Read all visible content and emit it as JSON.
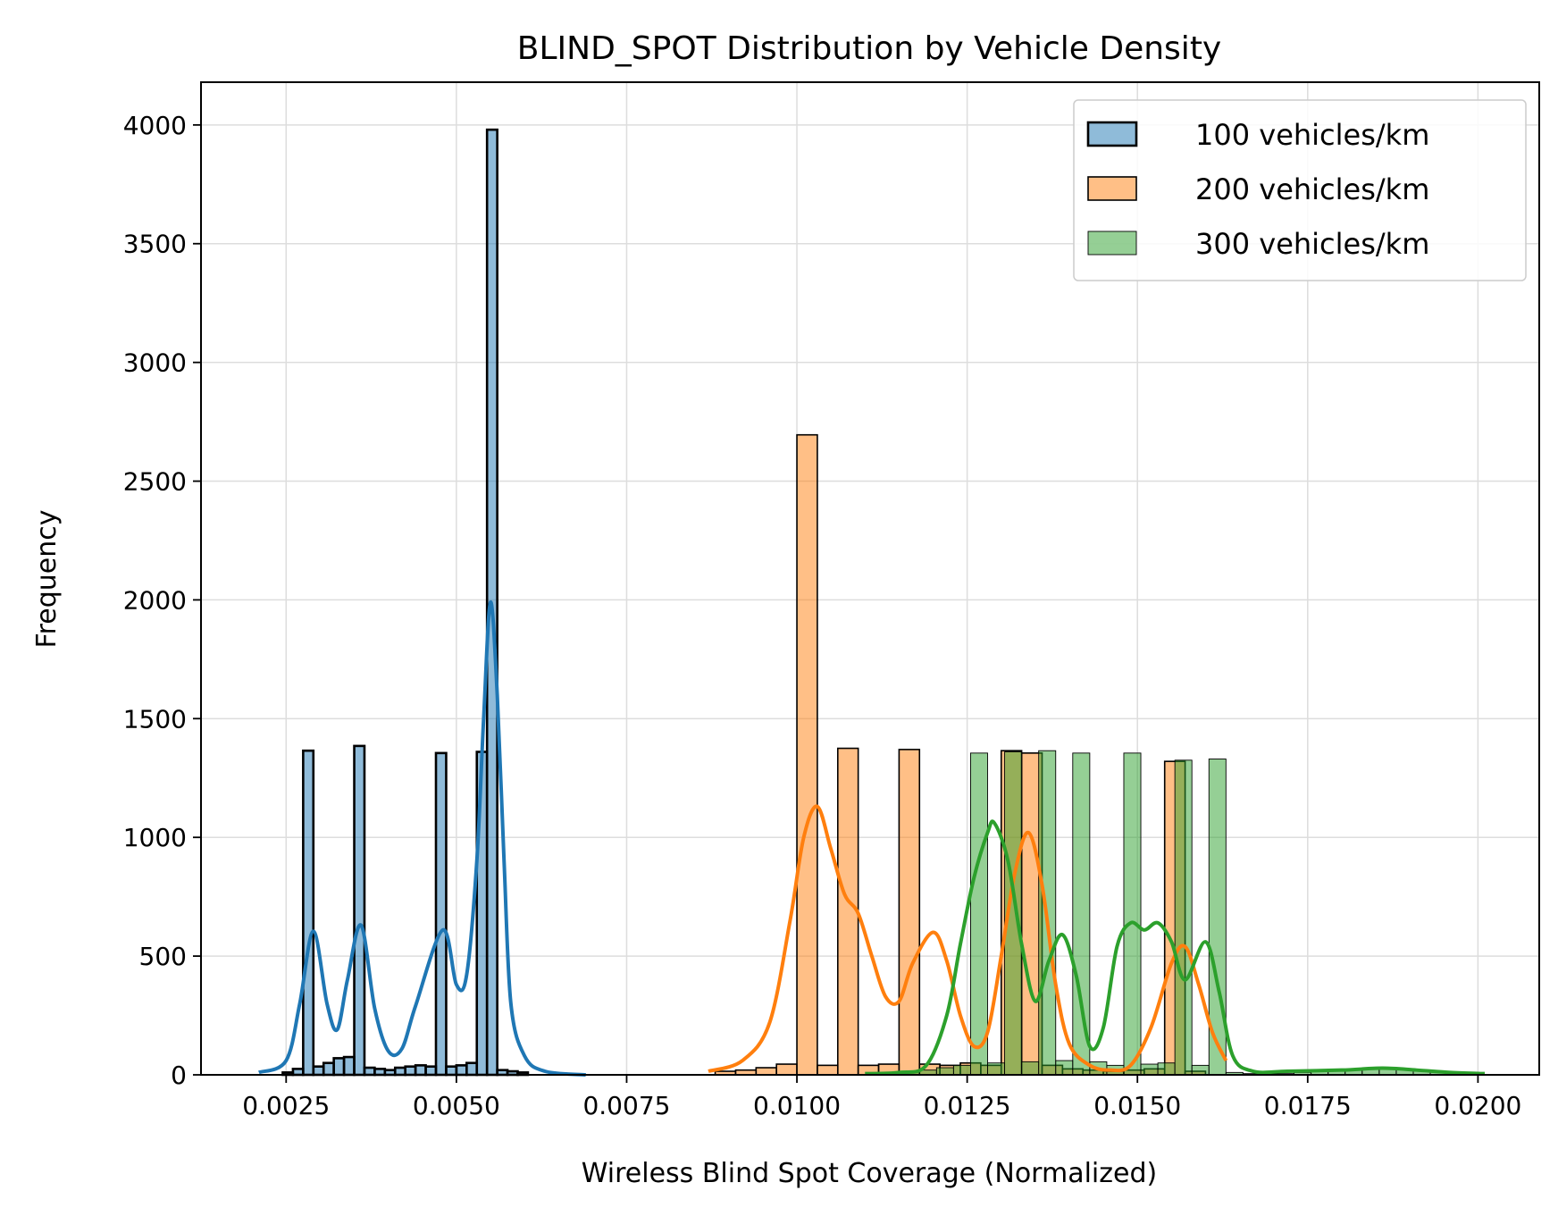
{
  "chart_data": {
    "type": "histogram",
    "title": "BLIND_SPOT Distribution by Vehicle Density",
    "xlabel": "Wireless Blind Spot Coverage (Normalized)",
    "ylabel": "Frequency",
    "xlim": [
      0.00125,
      0.0209
    ],
    "ylim": [
      0,
      4180
    ],
    "x_ticks": [
      0.0025,
      0.005,
      0.0075,
      0.01,
      0.0125,
      0.015,
      0.0175,
      0.02
    ],
    "x_tick_labels": [
      "0.0025",
      "0.0050",
      "0.0075",
      "0.0100",
      "0.0125",
      "0.0150",
      "0.0175",
      "0.0200"
    ],
    "y_ticks": [
      0,
      500,
      1000,
      1500,
      2000,
      2500,
      3000,
      3500,
      4000
    ],
    "y_tick_labels": [
      "0",
      "500",
      "1000",
      "1500",
      "2000",
      "2500",
      "3000",
      "3500",
      "4000"
    ],
    "grid": true,
    "legend_position": "top-right",
    "series": [
      {
        "name": "100 vehicles/km",
        "color": "#1f77b4",
        "bin_width": 0.00015,
        "bins": [
          {
            "x": 0.00245,
            "y": 10
          },
          {
            "x": 0.0026,
            "y": 25
          },
          {
            "x": 0.00275,
            "y": 1365
          },
          {
            "x": 0.0029,
            "y": 35
          },
          {
            "x": 0.00305,
            "y": 50
          },
          {
            "x": 0.0032,
            "y": 70
          },
          {
            "x": 0.00335,
            "y": 75
          },
          {
            "x": 0.0035,
            "y": 1385
          },
          {
            "x": 0.00365,
            "y": 30
          },
          {
            "x": 0.0038,
            "y": 25
          },
          {
            "x": 0.00395,
            "y": 20
          },
          {
            "x": 0.0041,
            "y": 30
          },
          {
            "x": 0.00425,
            "y": 35
          },
          {
            "x": 0.0044,
            "y": 40
          },
          {
            "x": 0.00455,
            "y": 35
          },
          {
            "x": 0.0047,
            "y": 1355
          },
          {
            "x": 0.00485,
            "y": 35
          },
          {
            "x": 0.005,
            "y": 40
          },
          {
            "x": 0.00515,
            "y": 50
          },
          {
            "x": 0.0053,
            "y": 1360
          },
          {
            "x": 0.00545,
            "y": 3980
          },
          {
            "x": 0.0056,
            "y": 20
          },
          {
            "x": 0.00575,
            "y": 15
          },
          {
            "x": 0.0059,
            "y": 10
          }
        ],
        "kde": [
          [
            0.0021,
            10
          ],
          [
            0.0025,
            60
          ],
          [
            0.0027,
            300
          ],
          [
            0.0029,
            605
          ],
          [
            0.0031,
            300
          ],
          [
            0.00325,
            190
          ],
          [
            0.0034,
            400
          ],
          [
            0.0036,
            630
          ],
          [
            0.0038,
            280
          ],
          [
            0.004,
            100
          ],
          [
            0.0042,
            110
          ],
          [
            0.0044,
            290
          ],
          [
            0.0048,
            610
          ],
          [
            0.005,
            380
          ],
          [
            0.00515,
            420
          ],
          [
            0.0053,
            900
          ],
          [
            0.0054,
            1500
          ],
          [
            0.0055,
            1990
          ],
          [
            0.0056,
            1600
          ],
          [
            0.0057,
            900
          ],
          [
            0.0058,
            300
          ],
          [
            0.006,
            80
          ],
          [
            0.0063,
            15
          ],
          [
            0.0069,
            0
          ]
        ]
      },
      {
        "name": "200 vehicles/km",
        "color": "#ff7f0e",
        "bin_width": 0.0003,
        "bins": [
          {
            "x": 0.0088,
            "y": 15
          },
          {
            "x": 0.0091,
            "y": 20
          },
          {
            "x": 0.0094,
            "y": 30
          },
          {
            "x": 0.0097,
            "y": 45
          },
          {
            "x": 0.01,
            "y": 2695
          },
          {
            "x": 0.0103,
            "y": 40
          },
          {
            "x": 0.0106,
            "y": 1375
          },
          {
            "x": 0.0109,
            "y": 40
          },
          {
            "x": 0.0112,
            "y": 45
          },
          {
            "x": 0.0115,
            "y": 1370
          },
          {
            "x": 0.0118,
            "y": 45
          },
          {
            "x": 0.0121,
            "y": 40
          },
          {
            "x": 0.0124,
            "y": 50
          },
          {
            "x": 0.0127,
            "y": 40
          },
          {
            "x": 0.013,
            "y": 1365
          },
          {
            "x": 0.0133,
            "y": 1355
          },
          {
            "x": 0.0136,
            "y": 40
          },
          {
            "x": 0.0139,
            "y": 25
          },
          {
            "x": 0.0142,
            "y": 20
          },
          {
            "x": 0.0145,
            "y": 15
          },
          {
            "x": 0.0148,
            "y": 20
          },
          {
            "x": 0.0151,
            "y": 25
          },
          {
            "x": 0.0154,
            "y": 1320
          },
          {
            "x": 0.0157,
            "y": 15
          }
        ],
        "kde": [
          [
            0.0087,
            15
          ],
          [
            0.0092,
            60
          ],
          [
            0.0096,
            220
          ],
          [
            0.0099,
            650
          ],
          [
            0.0101,
            1000
          ],
          [
            0.0103,
            1130
          ],
          [
            0.0105,
            950
          ],
          [
            0.0107,
            760
          ],
          [
            0.0109,
            680
          ],
          [
            0.0111,
            500
          ],
          [
            0.0113,
            330
          ],
          [
            0.0115,
            310
          ],
          [
            0.0117,
            470
          ],
          [
            0.012,
            600
          ],
          [
            0.0122,
            480
          ],
          [
            0.0124,
            250
          ],
          [
            0.0126,
            120
          ],
          [
            0.0128,
            180
          ],
          [
            0.013,
            500
          ],
          [
            0.0132,
            850
          ],
          [
            0.0134,
            1020
          ],
          [
            0.0136,
            800
          ],
          [
            0.0138,
            380
          ],
          [
            0.014,
            130
          ],
          [
            0.0143,
            40
          ],
          [
            0.0146,
            20
          ],
          [
            0.0149,
            40
          ],
          [
            0.0152,
            200
          ],
          [
            0.0155,
            470
          ],
          [
            0.0157,
            540
          ],
          [
            0.0159,
            380
          ],
          [
            0.0161,
            180
          ],
          [
            0.0163,
            60
          ]
        ]
      },
      {
        "name": "300 vehicles/km",
        "color": "#2ca02c",
        "bin_width": 0.00025,
        "bins": [
          {
            "x": 0.01105,
            "y": 5
          },
          {
            "x": 0.0113,
            "y": 10
          },
          {
            "x": 0.01155,
            "y": 15
          },
          {
            "x": 0.0118,
            "y": 20
          },
          {
            "x": 0.01205,
            "y": 30
          },
          {
            "x": 0.0123,
            "y": 40
          },
          {
            "x": 0.01255,
            "y": 1355
          },
          {
            "x": 0.0128,
            "y": 50
          },
          {
            "x": 0.01305,
            "y": 1360
          },
          {
            "x": 0.0133,
            "y": 55
          },
          {
            "x": 0.01355,
            "y": 1365
          },
          {
            "x": 0.0138,
            "y": 60
          },
          {
            "x": 0.01405,
            "y": 1355
          },
          {
            "x": 0.0143,
            "y": 55
          },
          {
            "x": 0.01455,
            "y": 40
          },
          {
            "x": 0.0148,
            "y": 1355
          },
          {
            "x": 0.01505,
            "y": 45
          },
          {
            "x": 0.0153,
            "y": 50
          },
          {
            "x": 0.01555,
            "y": 1325
          },
          {
            "x": 0.0158,
            "y": 40
          },
          {
            "x": 0.01605,
            "y": 1330
          },
          {
            "x": 0.0163,
            "y": 10
          },
          {
            "x": 0.01655,
            "y": 5
          },
          {
            "x": 0.0168,
            "y": 5
          },
          {
            "x": 0.01705,
            "y": 5
          },
          {
            "x": 0.0173,
            "y": 10
          },
          {
            "x": 0.01755,
            "y": 15
          },
          {
            "x": 0.0178,
            "y": 15
          },
          {
            "x": 0.01805,
            "y": 20
          },
          {
            "x": 0.0183,
            "y": 25
          },
          {
            "x": 0.01855,
            "y": 25
          },
          {
            "x": 0.0188,
            "y": 25
          },
          {
            "x": 0.01905,
            "y": 20
          },
          {
            "x": 0.0193,
            "y": 15
          },
          {
            "x": 0.01955,
            "y": 10
          }
        ],
        "kde": [
          [
            0.011,
            5
          ],
          [
            0.0115,
            10
          ],
          [
            0.0119,
            40
          ],
          [
            0.0122,
            250
          ],
          [
            0.0124,
            550
          ],
          [
            0.0126,
            830
          ],
          [
            0.0128,
            1020
          ],
          [
            0.0129,
            1060
          ],
          [
            0.0131,
            900
          ],
          [
            0.0133,
            550
          ],
          [
            0.0135,
            310
          ],
          [
            0.0137,
            480
          ],
          [
            0.0139,
            590
          ],
          [
            0.0141,
            420
          ],
          [
            0.0143,
            120
          ],
          [
            0.0145,
            200
          ],
          [
            0.0147,
            540
          ],
          [
            0.0149,
            640
          ],
          [
            0.0151,
            610
          ],
          [
            0.0153,
            640
          ],
          [
            0.0155,
            560
          ],
          [
            0.0157,
            400
          ],
          [
            0.016,
            560
          ],
          [
            0.0162,
            350
          ],
          [
            0.0164,
            80
          ],
          [
            0.0167,
            15
          ],
          [
            0.0172,
            15
          ],
          [
            0.018,
            20
          ],
          [
            0.0186,
            28
          ],
          [
            0.0191,
            20
          ],
          [
            0.0196,
            10
          ],
          [
            0.0201,
            5
          ]
        ]
      }
    ]
  }
}
